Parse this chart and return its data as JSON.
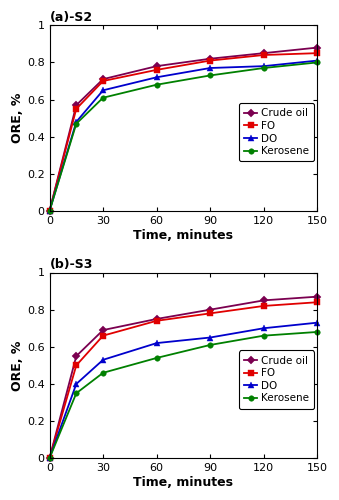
{
  "time": [
    0,
    15,
    30,
    60,
    90,
    120,
    150
  ],
  "subplot_a": {
    "title": "(a)-S2",
    "crude_oil": [
      0.0,
      0.57,
      0.71,
      0.78,
      0.82,
      0.85,
      0.88
    ],
    "fo": [
      0.0,
      0.55,
      0.7,
      0.76,
      0.81,
      0.84,
      0.85
    ],
    "do": [
      0.0,
      0.48,
      0.65,
      0.72,
      0.77,
      0.78,
      0.81
    ],
    "kerosene": [
      0.0,
      0.47,
      0.61,
      0.68,
      0.73,
      0.77,
      0.8
    ]
  },
  "subplot_b": {
    "title": "(b)-S3",
    "crude_oil": [
      0.0,
      0.55,
      0.69,
      0.75,
      0.8,
      0.85,
      0.87
    ],
    "fo": [
      0.0,
      0.5,
      0.66,
      0.74,
      0.78,
      0.82,
      0.84
    ],
    "do": [
      0.0,
      0.4,
      0.53,
      0.62,
      0.65,
      0.7,
      0.73
    ],
    "kerosene": [
      0.0,
      0.35,
      0.46,
      0.54,
      0.61,
      0.66,
      0.68
    ]
  },
  "colors": {
    "crude_oil": "#7B0050",
    "fo": "#E00000",
    "do": "#0000CC",
    "kerosene": "#008000"
  },
  "legend_labels": [
    "Crude oil",
    "FO",
    "DO",
    "Kerosene"
  ],
  "ylabel": "ORE, %",
  "xlabel": "Time, minutes",
  "ylim": [
    0,
    1.0
  ],
  "xlim": [
    0,
    150
  ],
  "yticks": [
    0,
    0.2,
    0.4,
    0.6,
    0.8,
    1.0
  ],
  "ytick_labels": [
    "0",
    "0.2",
    "0.4",
    "0.6",
    "0.8",
    "1"
  ],
  "xticks": [
    0,
    30,
    60,
    90,
    120,
    150
  ],
  "marker_size": 4,
  "line_width": 1.3
}
